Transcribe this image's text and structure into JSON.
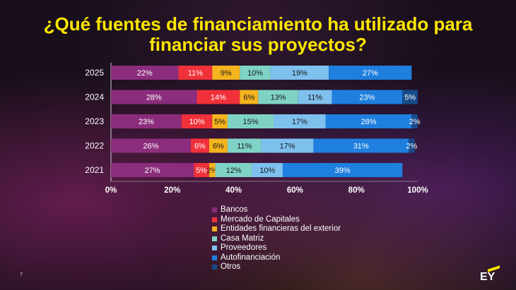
{
  "title_line1": "¿Qué fuentes de financiamiento ha utilizado para",
  "title_line2": "financiar sus proyectos?",
  "page_number": "7",
  "logo_text": "EY",
  "chart_data": {
    "type": "bar",
    "orientation": "horizontal",
    "stacked": true,
    "categories": [
      "2025",
      "2024",
      "2023",
      "2022",
      "2021"
    ],
    "xlim": [
      0,
      100
    ],
    "x_ticks": [
      "0%",
      "20%",
      "40%",
      "60%",
      "80%",
      "100%"
    ],
    "legend_position": "bottom",
    "series": [
      {
        "name": "Bancos",
        "color": "#8b2d7c",
        "values": [
          22,
          28,
          23,
          26,
          27
        ]
      },
      {
        "name": "Mercado de Capitales",
        "color": "#f0313a",
        "values": [
          11,
          14,
          10,
          6,
          5
        ]
      },
      {
        "name": "Entidades financieras del exterior",
        "color": "#f5b41e",
        "values": [
          9,
          6,
          5,
          6,
          2
        ]
      },
      {
        "name": "Casa Matriz",
        "color": "#7fd3c6",
        "values": [
          10,
          13,
          15,
          11,
          12
        ]
      },
      {
        "name": "Proveedores",
        "color": "#7ec0ee",
        "values": [
          19,
          11,
          17,
          17,
          10
        ]
      },
      {
        "name": "Autofinanciación",
        "color": "#1e7fde",
        "values": [
          27,
          23,
          28,
          31,
          39
        ]
      },
      {
        "name": "Otros",
        "color": "#174a8a",
        "values": [
          0,
          5,
          2,
          2,
          0
        ]
      }
    ]
  }
}
